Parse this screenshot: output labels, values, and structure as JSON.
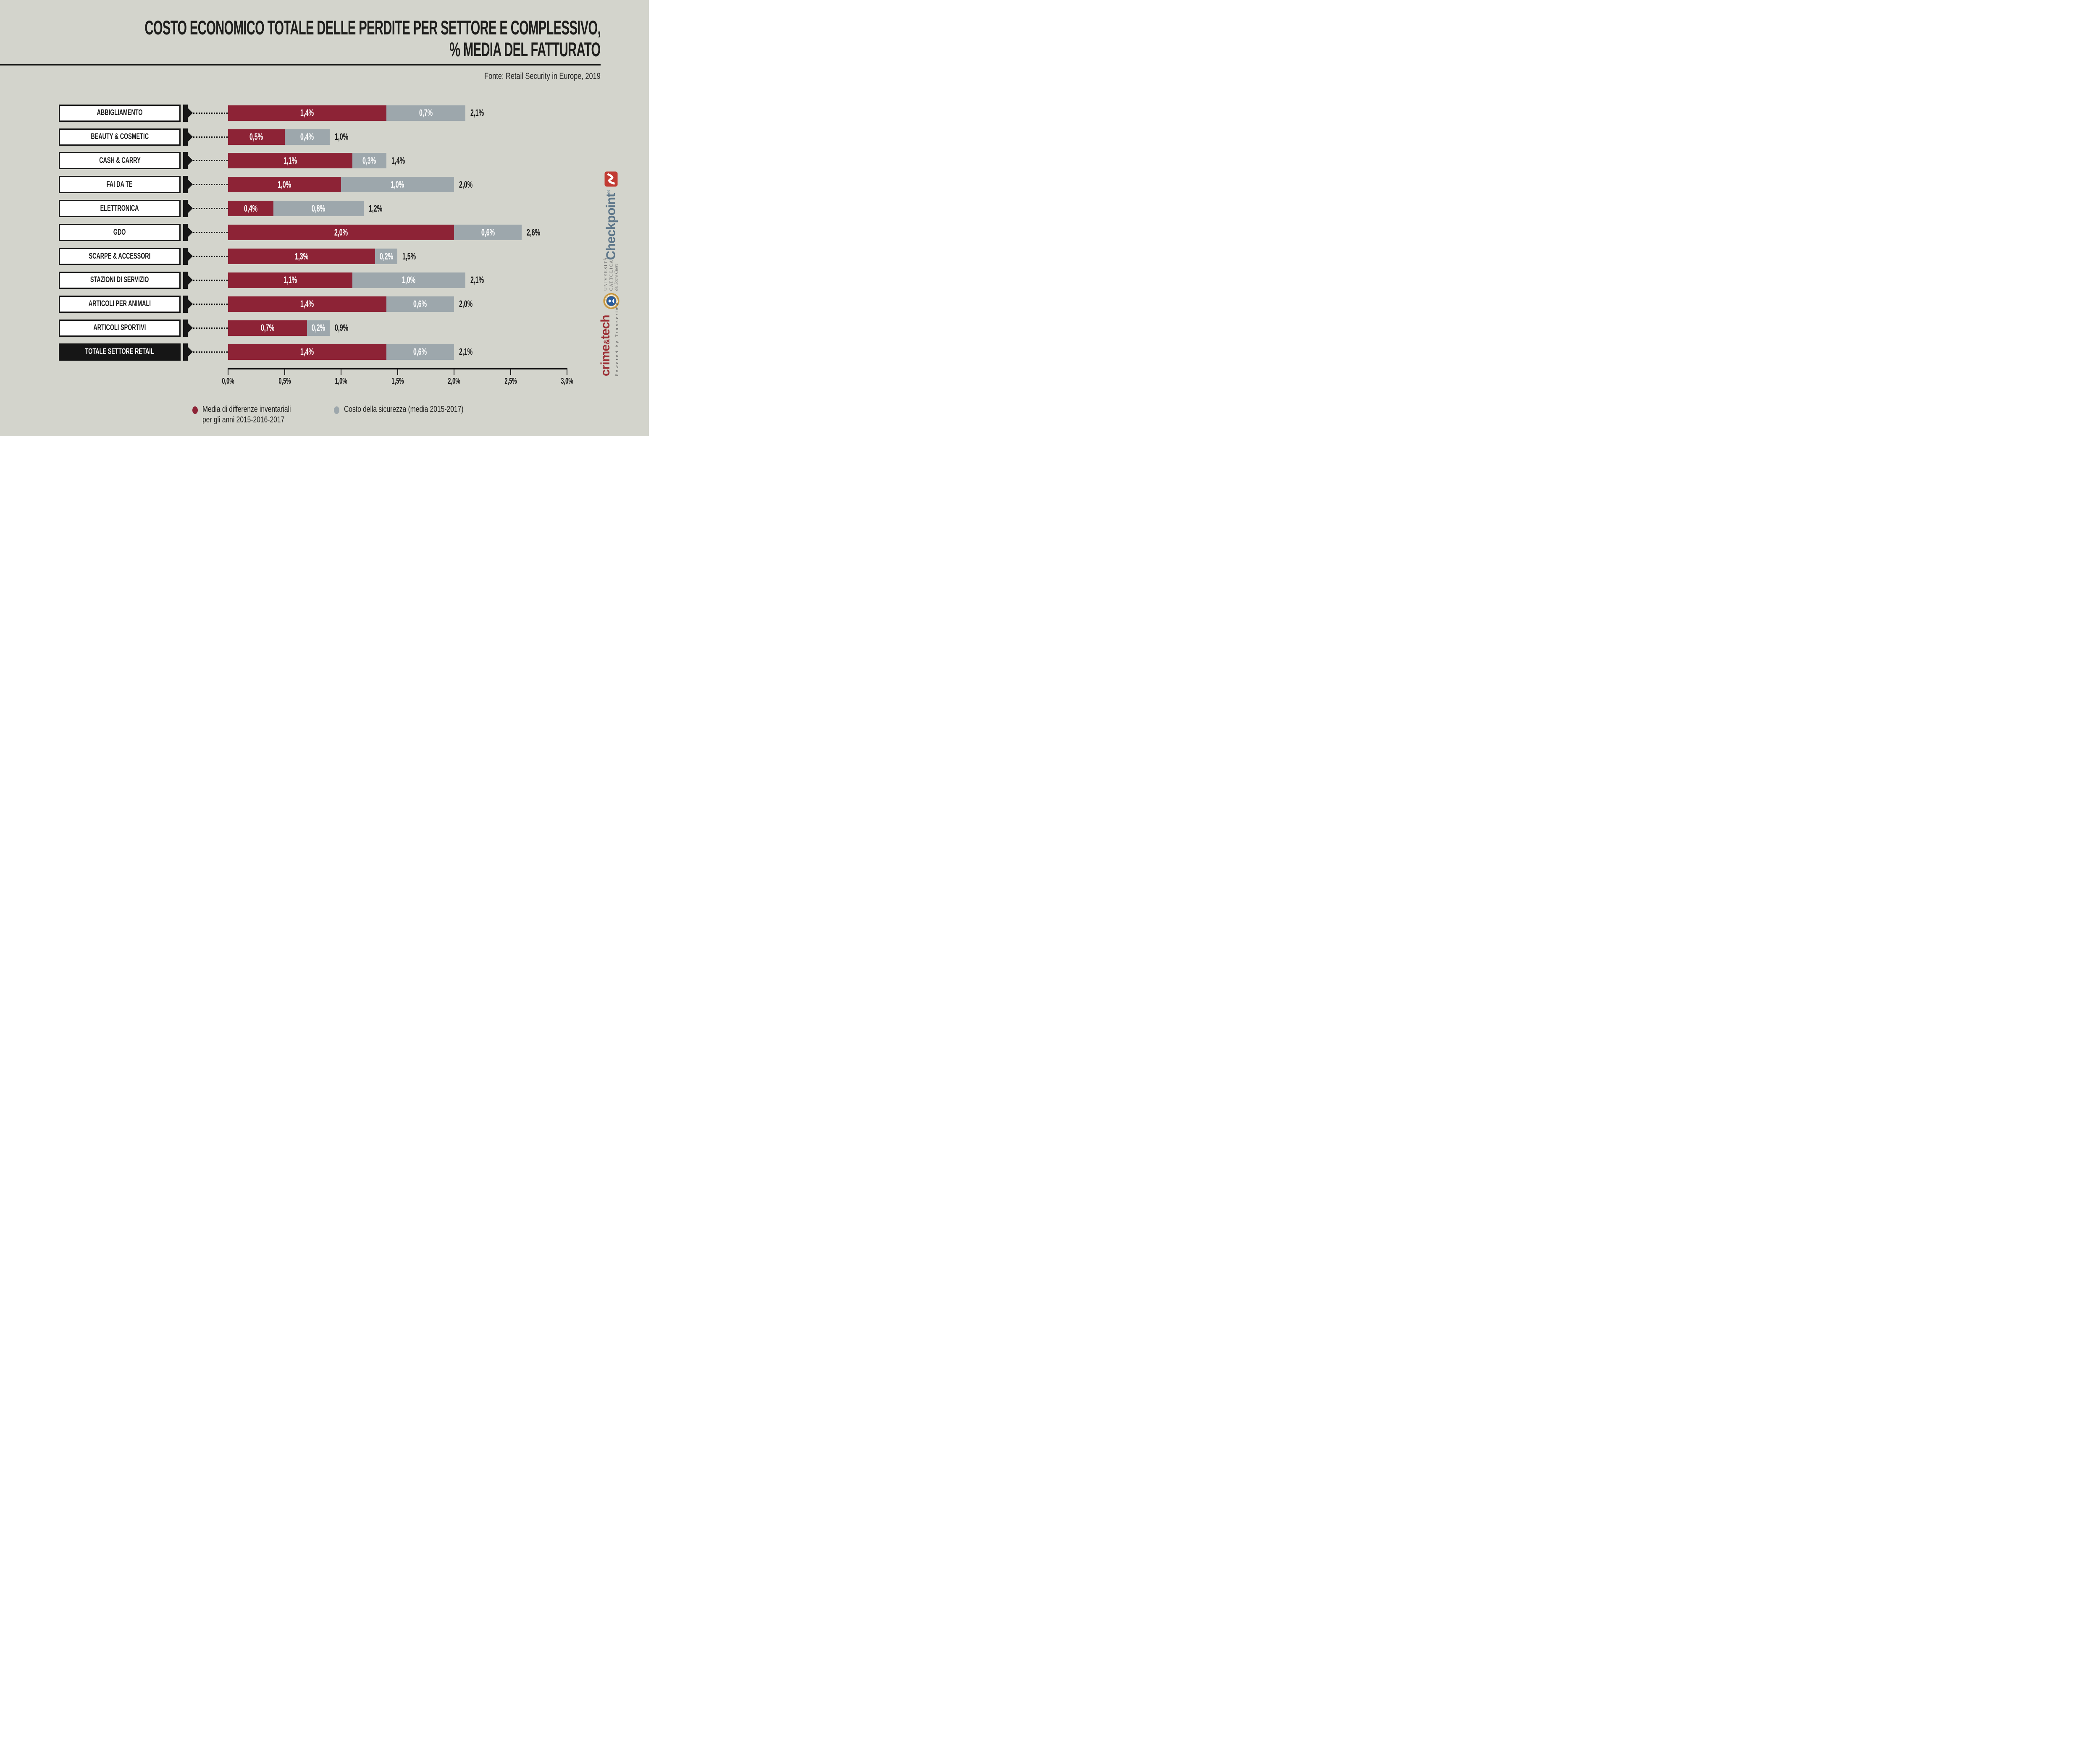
{
  "title": {
    "line1": "COSTO ECONOMICO TOTALE DELLE PERDITE PER SETTORE E COMPLESSIVO,",
    "line2": "% MEDIA DEL FATTURATO"
  },
  "source": "Fonte: Retail Security in Europe, 2019",
  "colors": {
    "background": "#d3d4cc",
    "inventory_red": "#8d2336",
    "security_gray": "#9da7ac",
    "ink": "#161616",
    "checkpoint_red": "#c23b33",
    "checkpoint_slate": "#5d7689",
    "crest_gold": "#c9973c",
    "crest_blue": "#2a5d9e",
    "crimetech_red": "#9c2f35"
  },
  "chart_data": {
    "type": "bar",
    "orientation": "horizontal",
    "stacked": true,
    "grid": false,
    "legend_position": "bottom",
    "categories": [
      "ABBIGLIAMENTO",
      "BEAUTY & COSMETIC",
      "CASH & CARRY",
      "FAI DA TE",
      "ELETTRONICA",
      "GDO",
      "SCARPE & ACCESSORI",
      "STAZIONI DI SERVIZIO",
      "ARTICOLI PER ANIMALI",
      "ARTICOLI SPORTIVI",
      "TOTALE SETTORE RETAIL"
    ],
    "series": [
      {
        "name": "Media di differenze inventariali per gli anni 2015-2016-2017",
        "color": "#8d2336",
        "values": [
          1.4,
          0.5,
          1.1,
          1.0,
          0.4,
          2.0,
          1.3,
          1.1,
          1.4,
          0.7,
          1.4
        ],
        "labels": [
          "1,4%",
          "0,5%",
          "1,1%",
          "1,0%",
          "0,4%",
          "2,0%",
          "1,3%",
          "1,1%",
          "1,4%",
          "0,7%",
          "1,4%"
        ]
      },
      {
        "name": "Costo della sicurezza (media 2015-2017)",
        "color": "#9da7ac",
        "values": [
          0.7,
          0.4,
          0.3,
          1.0,
          0.8,
          0.6,
          0.2,
          1.0,
          0.6,
          0.2,
          0.6
        ],
        "labels": [
          "0,7%",
          "0,4%",
          "0,3%",
          "1,0%",
          "0,8%",
          "0,6%",
          "0,2%",
          "1,0%",
          "0,6%",
          "0,2%",
          "0,6%"
        ]
      }
    ],
    "totals": {
      "values": [
        2.1,
        1.0,
        1.4,
        2.0,
        1.2,
        2.6,
        1.5,
        2.1,
        2.0,
        0.9,
        2.1
      ],
      "labels": [
        "2,1%",
        "1,0%",
        "1,4%",
        "2,0%",
        "1,2%",
        "2,6%",
        "1,5%",
        "2,1%",
        "2,0%",
        "0,9%",
        "2,1%"
      ]
    },
    "highlight_category": "TOTALE SETTORE RETAIL",
    "xlim": [
      0,
      3
    ],
    "x_ticks": [
      "0,0%",
      "0,5%",
      "1,0%",
      "1,5%",
      "2,0%",
      "2,5%",
      "3,0%"
    ]
  },
  "legend": {
    "items": [
      {
        "color": "#8d2336",
        "lines": [
          "Media di differenze inventariali",
          "per gli anni 2015-2016-2017"
        ]
      },
      {
        "color": "#9da7ac",
        "lines": [
          "Costo della sicurezza (media 2015-2017)"
        ]
      }
    ]
  },
  "logos": {
    "checkpoint": {
      "text": "Checkpoint",
      "registered": "®"
    },
    "universita": {
      "line1": "UNIVERSITÀ",
      "line2": "CATTOLICA",
      "line3": "del Sacro Cuore",
      "crest_ring_text": "UNIVERSITAS CATHOLICA SACRI CORDIS JESU · MEDIOLANI"
    },
    "crimetech": {
      "name_pre": "crime",
      "amp": "&",
      "name_post": "tech",
      "tagline": "Powered by Transcrime"
    }
  }
}
